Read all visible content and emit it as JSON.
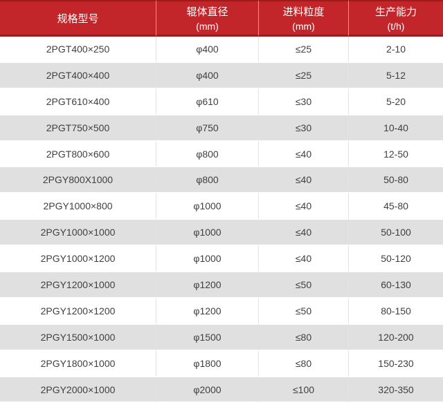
{
  "chart_data": {
    "type": "table",
    "title": "",
    "columns": [
      {
        "label": "规格型号",
        "unit": ""
      },
      {
        "label": "辊体直径",
        "unit": "(mm)"
      },
      {
        "label": "进料粒度",
        "unit": "(mm)"
      },
      {
        "label": "生产能力",
        "unit": "(t/h)"
      }
    ],
    "rows": [
      [
        "2PGT400×250",
        "φ400",
        "≤25",
        "2-10"
      ],
      [
        "2PGT400×400",
        "φ400",
        "≤25",
        "5-12"
      ],
      [
        "2PGT610×400",
        "φ610",
        "≤30",
        "5-20"
      ],
      [
        "2PGT750×500",
        "φ750",
        "≤30",
        "10-40"
      ],
      [
        "2PGT800×600",
        "φ800",
        "≤40",
        "12-50"
      ],
      [
        "2PGY800X1000",
        "φ800",
        "≤40",
        "50-80"
      ],
      [
        "2PGY1000×800",
        "φ1000",
        "≤40",
        "45-80"
      ],
      [
        "2PGY1000×1000",
        "φ1000",
        "≤40",
        "50-100"
      ],
      [
        "2PGY1000×1200",
        "φ1000",
        "≤40",
        "50-120"
      ],
      [
        "2PGY1200×1000",
        "φ1200",
        "≤50",
        "60-130"
      ],
      [
        "2PGY1200×1200",
        "φ1200",
        "≤50",
        "80-150"
      ],
      [
        "2PGY1500×1000",
        "φ1500",
        "≤80",
        "120-200"
      ],
      [
        "2PGY1800×1000",
        "φ1800",
        "≤80",
        "150-230"
      ],
      [
        "2PGY2000×1000",
        "φ2000",
        "≤100",
        "320-350"
      ]
    ],
    "layout": {
      "legend": "none",
      "grid": "on",
      "header_rows": 1,
      "body_rows": 14,
      "row_striping": "alternate"
    },
    "colors": {
      "header_bg": "#c2262a",
      "header_edge": "#9e1b1b",
      "header_text": "#ffffff",
      "row_bg": "#ffffff",
      "row_alt_bg": "#e0e0e0",
      "cell_border": "#e2e2e2",
      "cell_text": "#3f3f3f"
    }
  }
}
